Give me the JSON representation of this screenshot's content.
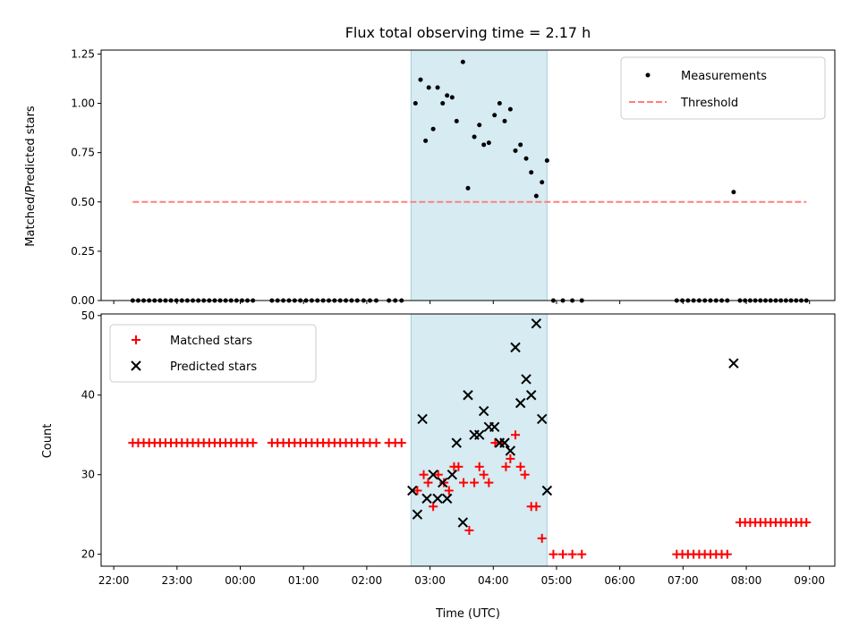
{
  "chart_data": {
    "type": "scatter",
    "title": "Flux total observing time = 2.17 h",
    "xlabel": "Time (UTC)",
    "x_tick_labels": [
      "22:00",
      "23:00",
      "00:00",
      "01:00",
      "02:00",
      "03:00",
      "04:00",
      "05:00",
      "06:00",
      "07:00",
      "08:00",
      "09:00"
    ],
    "xlim_hours_after_22": [
      -0.2,
      11.4
    ],
    "shaded_region_hours_after_22": [
      4.7,
      6.85
    ],
    "panels": [
      {
        "ylabel": "Matched/Predicted stars",
        "ylim": [
          0,
          1.27
        ],
        "yticks": [
          "0.00",
          "0.25",
          "0.50",
          "0.75",
          "1.00",
          "1.25"
        ],
        "legend_position": "top-right",
        "series": [
          {
            "name": "Measurements",
            "marker": "dot",
            "color": "#000000",
            "points": [
              [
                4.77,
                1.0
              ],
              [
                4.85,
                1.12
              ],
              [
                4.93,
                0.81
              ],
              [
                4.98,
                1.08
              ],
              [
                5.05,
                0.87
              ],
              [
                5.12,
                1.08
              ],
              [
                5.2,
                1.0
              ],
              [
                5.27,
                1.04
              ],
              [
                5.35,
                1.03
              ],
              [
                5.42,
                0.91
              ],
              [
                5.52,
                1.21
              ],
              [
                5.6,
                0.57
              ],
              [
                5.7,
                0.83
              ],
              [
                5.78,
                0.89
              ],
              [
                5.85,
                0.79
              ],
              [
                5.93,
                0.8
              ],
              [
                6.02,
                0.94
              ],
              [
                6.1,
                1.0
              ],
              [
                6.18,
                0.91
              ],
              [
                6.27,
                0.97
              ],
              [
                6.35,
                0.76
              ],
              [
                6.43,
                0.79
              ],
              [
                6.52,
                0.72
              ],
              [
                6.6,
                0.65
              ],
              [
                6.68,
                0.53
              ],
              [
                6.77,
                0.6
              ],
              [
                6.85,
                0.71
              ],
              [
                9.8,
                0.55
              ]
            ]
          },
          {
            "name": "Threshold",
            "marker": "dashed-line",
            "color": "#ff7f7f",
            "value": 0.5,
            "x_range": [
              0.3,
              10.95
            ]
          }
        ],
        "zero_value_runs": [
          {
            "x_from": 0.3,
            "x_to": 2.2,
            "count": 23
          },
          {
            "x_from": 2.5,
            "x_to": 3.85,
            "count": 16
          },
          {
            "x_from": 3.95,
            "x_to": 4.15,
            "count": 3
          },
          {
            "x_from": 4.35,
            "x_to": 4.55,
            "count": 3
          },
          {
            "x_from": 6.95,
            "x_to": 7.4,
            "count": 4
          },
          {
            "x_from": 8.9,
            "x_to": 9.7,
            "count": 10
          },
          {
            "x_from": 9.9,
            "x_to": 10.95,
            "count": 14
          }
        ]
      },
      {
        "ylabel": "Count",
        "ylim": [
          18.5,
          50.2
        ],
        "yticks": [
          "20",
          "30",
          "40",
          "50"
        ],
        "legend_position": "top-left",
        "series": [
          {
            "name": "Matched stars",
            "marker": "plus",
            "color": "#ff0000",
            "points": [
              [
                4.8,
                28
              ],
              [
                4.9,
                30
              ],
              [
                4.97,
                29
              ],
              [
                5.05,
                26
              ],
              [
                5.13,
                30
              ],
              [
                5.22,
                29
              ],
              [
                5.3,
                28
              ],
              [
                5.38,
                31
              ],
              [
                5.45,
                31
              ],
              [
                5.53,
                29
              ],
              [
                5.62,
                23
              ],
              [
                5.7,
                29
              ],
              [
                5.78,
                31
              ],
              [
                5.85,
                30
              ],
              [
                5.93,
                29
              ],
              [
                6.03,
                34
              ],
              [
                6.12,
                34
              ],
              [
                6.2,
                31
              ],
              [
                6.27,
                32
              ],
              [
                6.35,
                35
              ],
              [
                6.43,
                31
              ],
              [
                6.5,
                30
              ],
              [
                6.6,
                26
              ],
              [
                6.68,
                26
              ],
              [
                6.77,
                22
              ]
            ],
            "runs": [
              {
                "x_from": 0.3,
                "x_to": 2.2,
                "count": 23,
                "value": 34
              },
              {
                "x_from": 2.5,
                "x_to": 3.85,
                "count": 16,
                "value": 34
              },
              {
                "x_from": 3.95,
                "x_to": 4.15,
                "count": 3,
                "value": 34
              },
              {
                "x_from": 4.35,
                "x_to": 4.55,
                "count": 3,
                "value": 34
              },
              {
                "x_from": 6.95,
                "x_to": 7.4,
                "count": 4,
                "value": 20
              },
              {
                "x_from": 8.9,
                "x_to": 9.7,
                "count": 10,
                "value": 20
              },
              {
                "x_from": 9.9,
                "x_to": 10.95,
                "count": 14,
                "value": 24
              }
            ]
          },
          {
            "name": "Predicted stars",
            "marker": "x",
            "color": "#000000",
            "points": [
              [
                4.72,
                28
              ],
              [
                4.8,
                25
              ],
              [
                4.88,
                37
              ],
              [
                4.95,
                27
              ],
              [
                5.05,
                30
              ],
              [
                5.12,
                27
              ],
              [
                5.2,
                29
              ],
              [
                5.27,
                27
              ],
              [
                5.35,
                30
              ],
              [
                5.42,
                34
              ],
              [
                5.52,
                24
              ],
              [
                5.6,
                40
              ],
              [
                5.7,
                35
              ],
              [
                5.78,
                35
              ],
              [
                5.85,
                38
              ],
              [
                5.93,
                36
              ],
              [
                6.02,
                36
              ],
              [
                6.1,
                34
              ],
              [
                6.18,
                34
              ],
              [
                6.27,
                33
              ],
              [
                6.35,
                46
              ],
              [
                6.43,
                39
              ],
              [
                6.52,
                42
              ],
              [
                6.6,
                40
              ],
              [
                6.68,
                49
              ],
              [
                6.77,
                37
              ],
              [
                6.85,
                28
              ],
              [
                9.8,
                44
              ]
            ]
          }
        ]
      }
    ]
  }
}
